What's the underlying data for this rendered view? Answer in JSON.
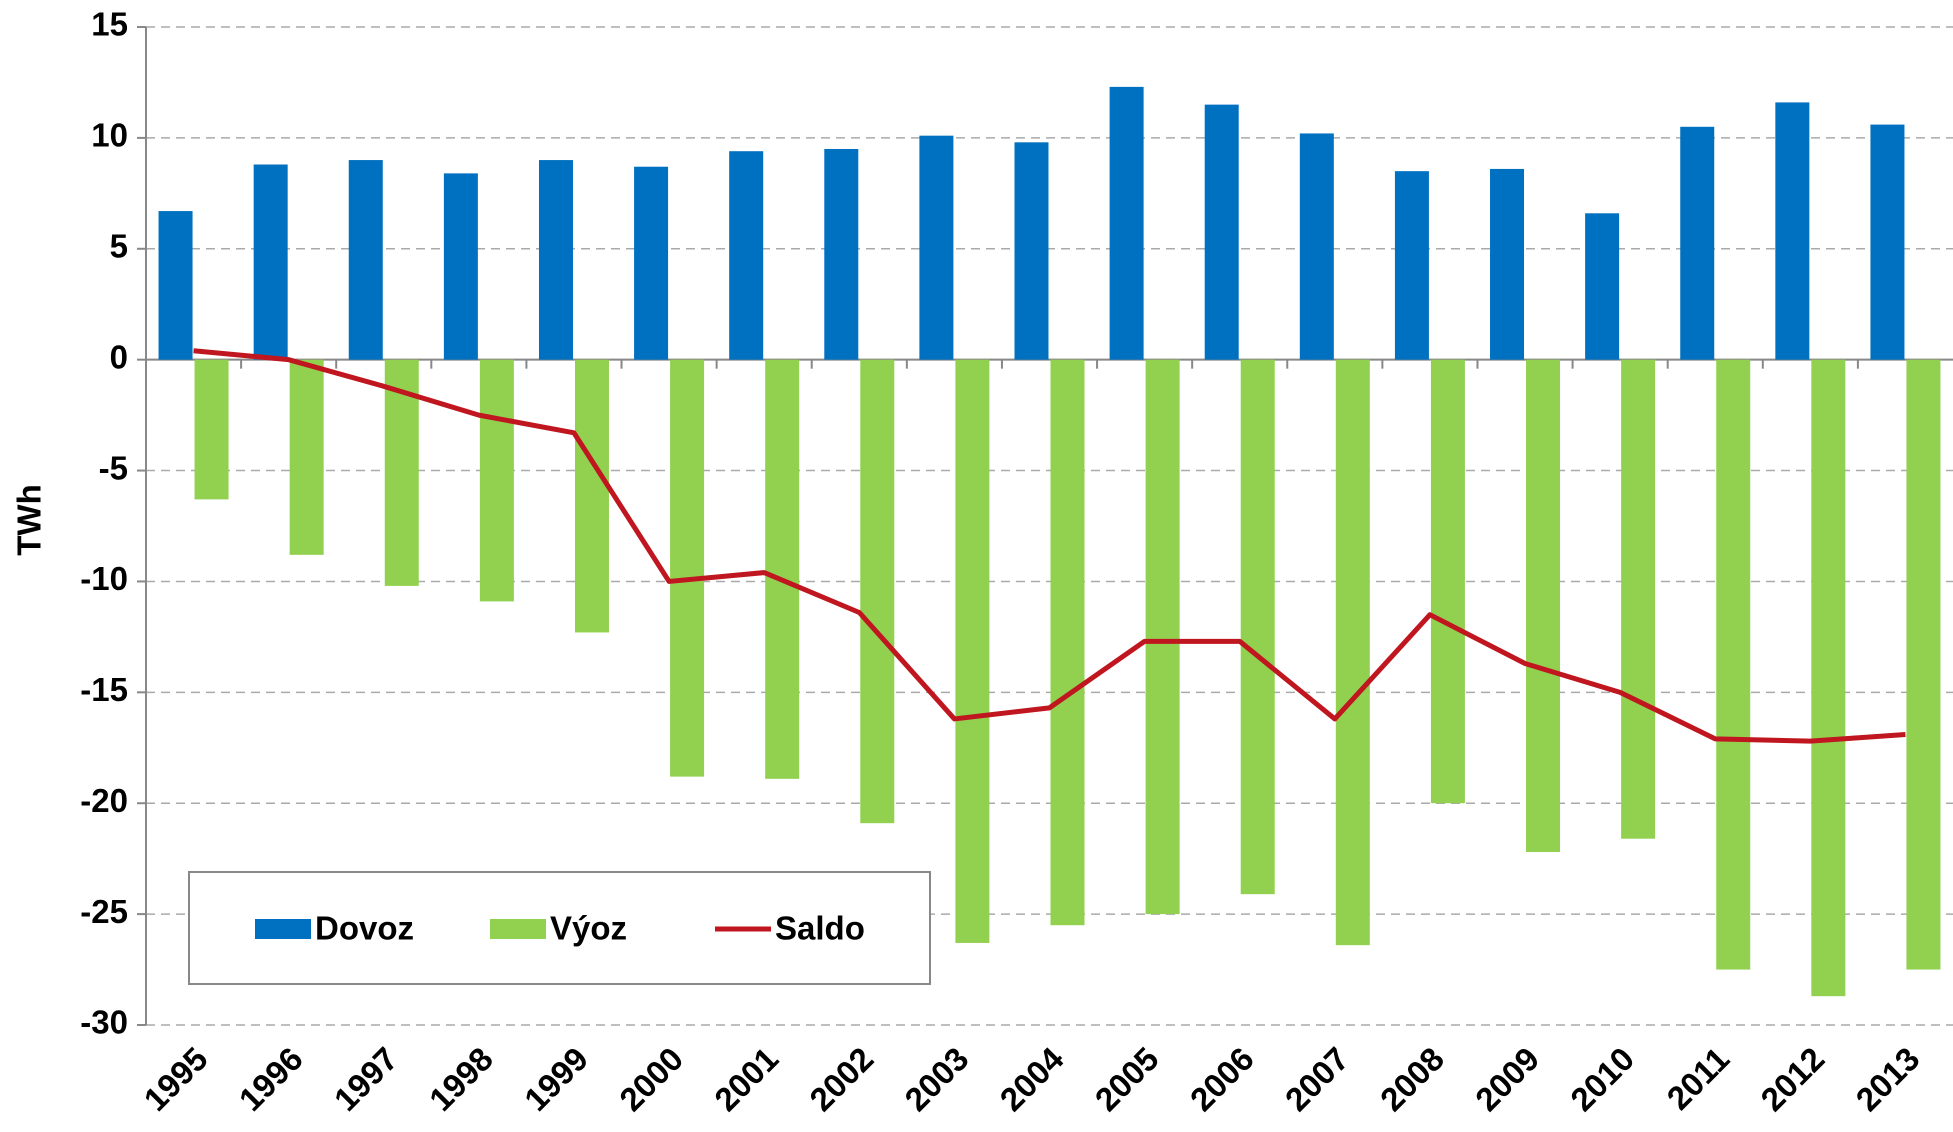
{
  "chart_data": {
    "type": "bar-line",
    "y_label": "TWh",
    "categories": [
      "1995",
      "1996",
      "1997",
      "1998",
      "1999",
      "2000",
      "2001",
      "2002",
      "2003",
      "2004",
      "2005",
      "2006",
      "2007",
      "2008",
      "2009",
      "2010",
      "2011",
      "2012",
      "2013"
    ],
    "series": [
      {
        "name": "Dovoz",
        "type": "bar",
        "color": "#0070c0",
        "values": [
          6.7,
          8.8,
          9.0,
          8.4,
          9.0,
          8.7,
          9.4,
          9.5,
          10.1,
          9.8,
          12.3,
          11.5,
          10.2,
          8.5,
          8.6,
          6.6,
          10.5,
          11.6,
          10.6
        ]
      },
      {
        "name": "Výoz",
        "type": "bar",
        "color": "#92d050",
        "values": [
          -6.3,
          -8.8,
          -10.2,
          -10.9,
          -12.3,
          -18.8,
          -18.9,
          -20.9,
          -26.3,
          -25.5,
          -25.0,
          -24.1,
          -26.4,
          -20.0,
          -22.2,
          -21.6,
          -27.5,
          -28.7,
          -27.5
        ]
      },
      {
        "name": "Saldo",
        "type": "line",
        "color": "#c0161f",
        "values": [
          0.4,
          0.0,
          -1.2,
          -2.5,
          -3.3,
          -10.0,
          -9.6,
          -11.4,
          -16.2,
          -15.7,
          -12.7,
          -12.7,
          -16.2,
          -11.5,
          -13.7,
          -15.0,
          -17.1,
          -17.2,
          -16.9
        ]
      }
    ],
    "ylim": [
      -30,
      15
    ],
    "yticks": [
      -30,
      -25,
      -20,
      -15,
      -10,
      -5,
      0,
      5,
      10,
      15
    ],
    "grid": true
  }
}
